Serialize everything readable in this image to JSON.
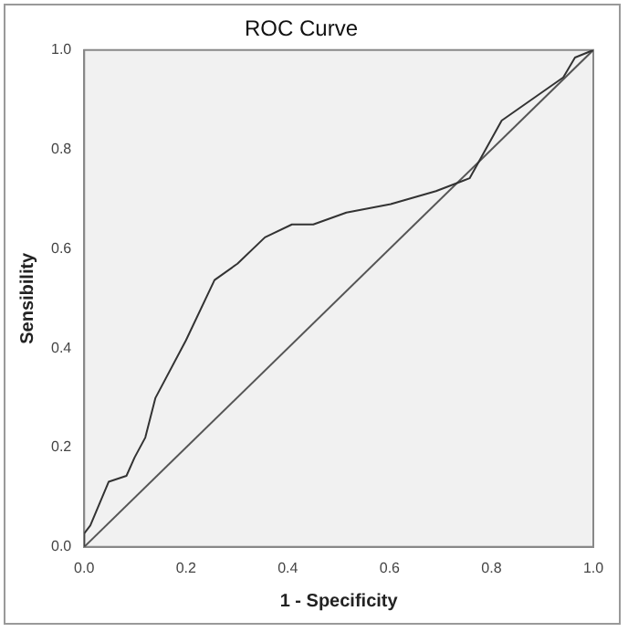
{
  "chart_data": {
    "type": "line",
    "title": "ROC Curve",
    "xlabel": "1 - Specificity",
    "ylabel": "Sensibility",
    "xlim": [
      0,
      1
    ],
    "ylim": [
      0,
      1
    ],
    "xticks": [
      {
        "value": 0,
        "label": "0.0"
      },
      0.2,
      0.4,
      0.6,
      0.8,
      {
        "value": 1,
        "label": "1.0"
      }
    ],
    "yticks": [
      {
        "value": 0,
        "label": "0.0"
      },
      0.2,
      0.4,
      0.6,
      0.8,
      {
        "value": 1,
        "label": "1.0"
      }
    ],
    "grid": false,
    "legend": false,
    "marker": "none",
    "line_style": "solid",
    "series": [
      {
        "color": "#333333",
        "x": [
          0,
          0,
          0.012,
          0.048,
          0.083,
          0.099,
          0.12,
          0.14,
          0.2,
          0.256,
          0.301,
          0.355,
          0.408,
          0.45,
          0.515,
          0.602,
          0.691,
          0.757,
          0.82,
          0.941,
          0.964,
          1
        ],
        "values": [
          0,
          0.027,
          0.043,
          0.131,
          0.143,
          0.18,
          0.22,
          0.3,
          0.416,
          0.537,
          0.57,
          0.623,
          0.649,
          0.649,
          0.673,
          0.69,
          0.716,
          0.742,
          0.858,
          0.945,
          0.985,
          1
        ]
      },
      {
        "color": "#555555",
        "x": [
          0,
          1
        ],
        "values": [
          0,
          1
        ]
      }
    ]
  }
}
